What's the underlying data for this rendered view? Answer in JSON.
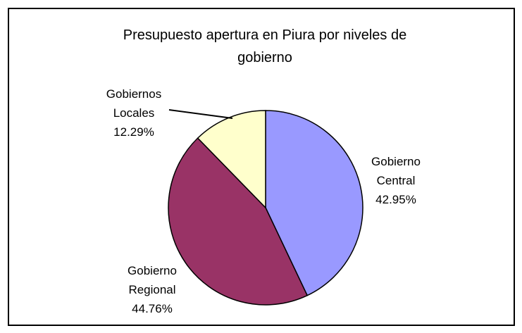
{
  "chart_data": {
    "type": "pie",
    "title": "Presupuesto apertura en Piura por niveles de gobierno",
    "categories": [
      "Gobierno Central",
      "Gobierno Regional",
      "Gobiernos Locales"
    ],
    "values": [
      42.95,
      44.76,
      12.29
    ],
    "value_labels": [
      "42.95%",
      "44.76%",
      "12.29%"
    ],
    "colors": [
      "#9999ff",
      "#993366",
      "#ffffcc"
    ]
  }
}
